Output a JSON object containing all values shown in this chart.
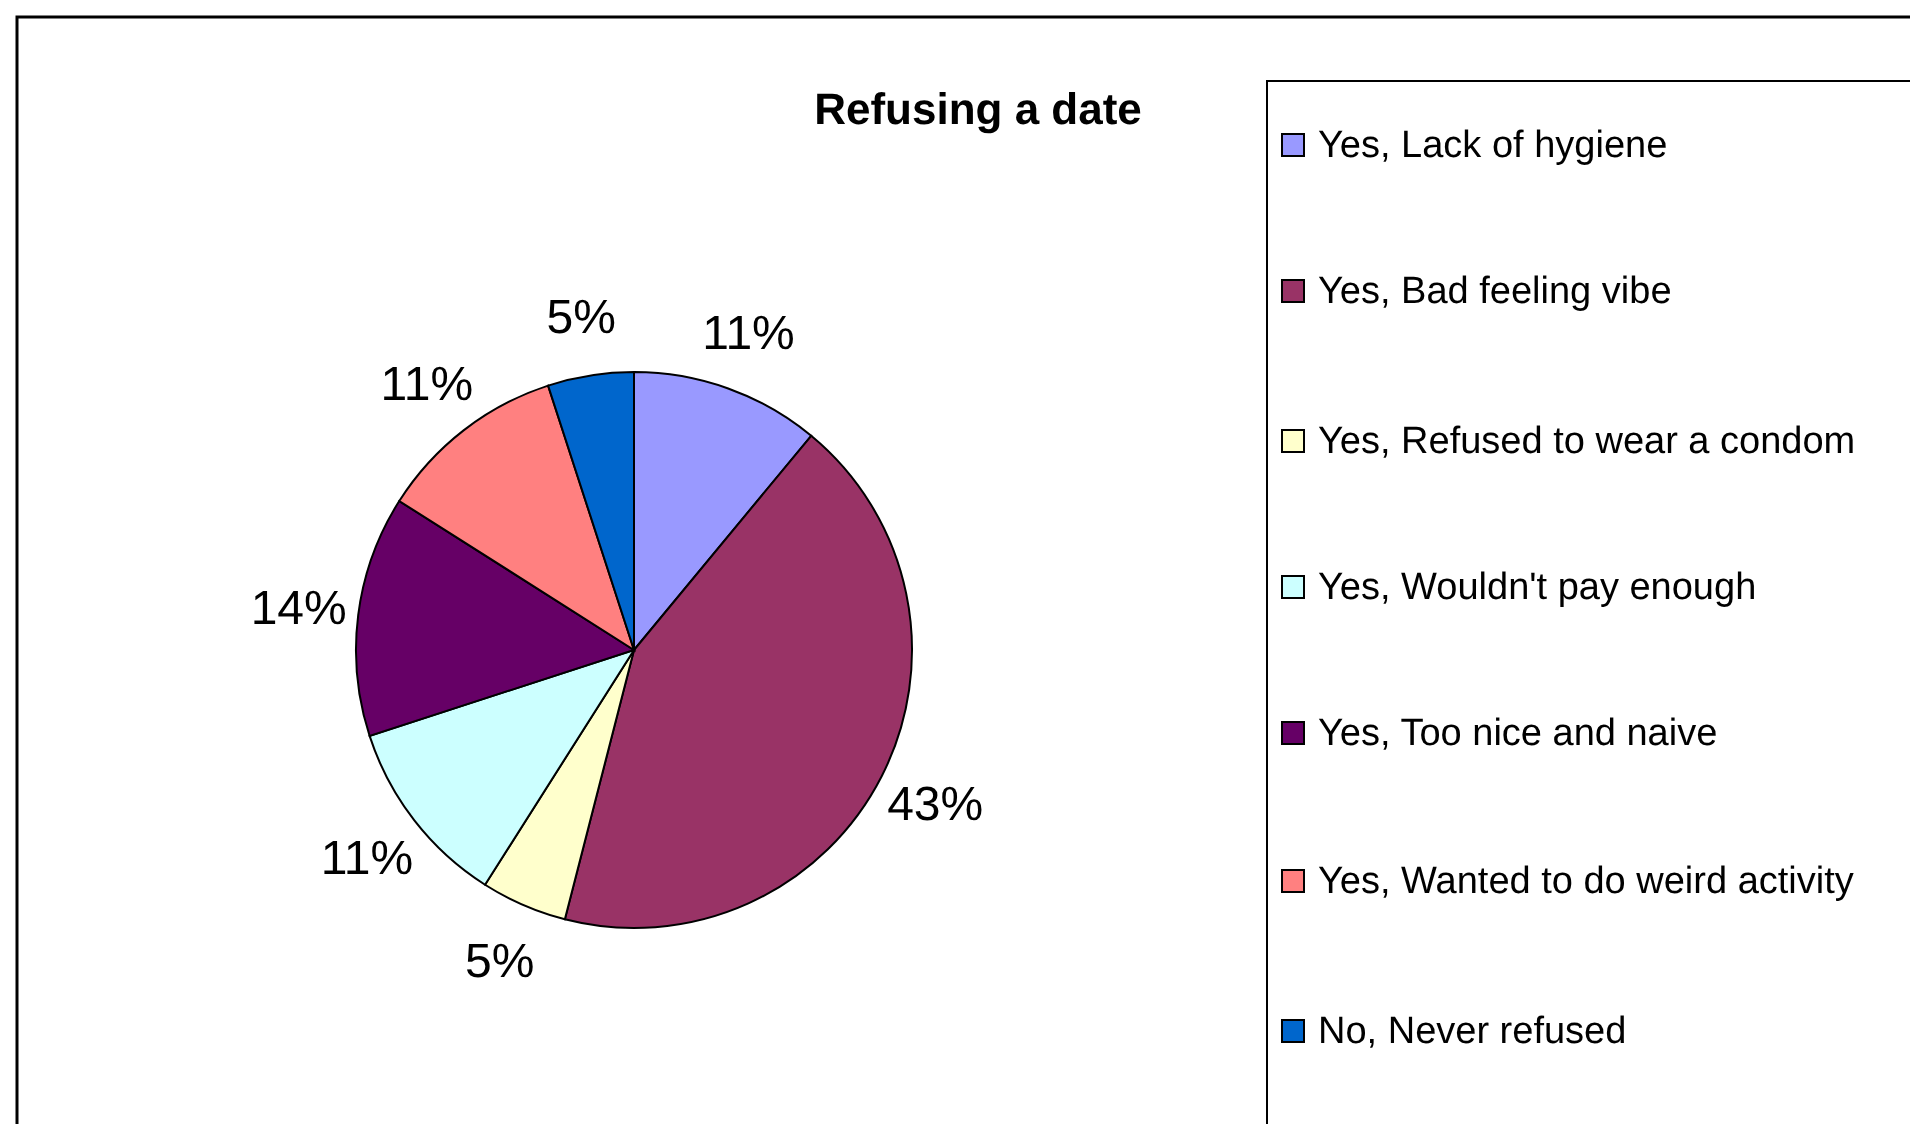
{
  "chart_data": {
    "type": "pie",
    "title": "Refusing a date",
    "categories": [
      "Yes, Lack of hygiene",
      "Yes, Bad feeling vibe",
      "Yes, Refused to wear a condom",
      "Yes, Wouldn't pay enough",
      "Yes, Too nice and naive",
      "Yes, Wanted to do weird activity",
      "No, Never refused"
    ],
    "values": [
      11,
      43,
      5,
      11,
      14,
      11,
      5
    ],
    "value_labels": [
      "11%",
      "43%",
      "5%",
      "11%",
      "14%",
      "11%",
      "5%"
    ],
    "colors": [
      "#9999ff",
      "#993366",
      "#ffffcc",
      "#ccffff",
      "#660066",
      "#ff8080",
      "#0066cc"
    ],
    "legend": "right"
  }
}
